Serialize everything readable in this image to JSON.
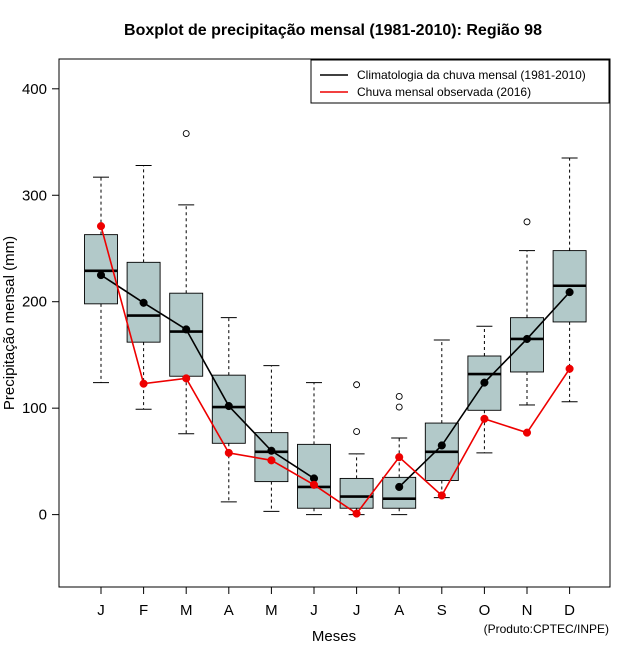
{
  "chart_data": {
    "type": "boxplot",
    "title": "Boxplot de precipitação mensal (1981-2010): Região 98",
    "xlabel": "Meses",
    "ylabel": "Precipitação mensal (mm)",
    "ylim": [
      -68,
      428
    ],
    "yticks": [
      0,
      100,
      200,
      300,
      400
    ],
    "categories": [
      "J",
      "F",
      "M",
      "A",
      "M",
      "J",
      "J",
      "A",
      "S",
      "O",
      "N",
      "D"
    ],
    "boxes": [
      {
        "whisker_low": 124,
        "q1": 198,
        "median": 229,
        "q3": 263,
        "whisker_high": 317,
        "outliers": []
      },
      {
        "whisker_low": 99,
        "q1": 162,
        "median": 187,
        "q3": 237,
        "whisker_high": 328,
        "outliers": []
      },
      {
        "whisker_low": 76,
        "q1": 130,
        "median": 172,
        "q3": 208,
        "whisker_high": 291,
        "outliers": [
          358
        ]
      },
      {
        "whisker_low": 12,
        "q1": 67,
        "median": 101,
        "q3": 131,
        "whisker_high": 185,
        "outliers": []
      },
      {
        "whisker_low": 3,
        "q1": 31,
        "median": 59,
        "q3": 77,
        "whisker_high": 140,
        "outliers": []
      },
      {
        "whisker_low": 0,
        "q1": 6,
        "median": 26,
        "q3": 66,
        "whisker_high": 124,
        "outliers": []
      },
      {
        "whisker_low": 0,
        "q1": 6,
        "median": 17,
        "q3": 34,
        "whisker_high": 57,
        "outliers": [
          78,
          122
        ]
      },
      {
        "whisker_low": 0,
        "q1": 6,
        "median": 15,
        "q3": 35,
        "whisker_high": 72,
        "outliers": [
          101,
          111
        ]
      },
      {
        "whisker_low": 16,
        "q1": 32,
        "median": 59,
        "q3": 86,
        "whisker_high": 164,
        "outliers": []
      },
      {
        "whisker_low": 58,
        "q1": 98,
        "median": 132,
        "q3": 149,
        "whisker_high": 177,
        "outliers": []
      },
      {
        "whisker_low": 103,
        "q1": 134,
        "median": 165,
        "q3": 185,
        "whisker_high": 248,
        "outliers": [
          275
        ]
      },
      {
        "whisker_low": 106,
        "q1": 181,
        "median": 215,
        "q3": 248,
        "whisker_high": 335,
        "outliers": []
      }
    ],
    "series": [
      {
        "name": "Climatologia da chuva mensal (1981-2010)",
        "color": "#000000",
        "values": [
          225,
          199,
          174,
          102,
          60,
          34,
          null,
          26,
          65,
          124,
          165,
          209
        ]
      },
      {
        "name": "Chuva mensal observada (2016)",
        "color": "#ee0000",
        "values": [
          271,
          123,
          128,
          58,
          51,
          28,
          1,
          54,
          18,
          90,
          77,
          137
        ]
      }
    ],
    "legend_position": "top-right",
    "box_color": "#b2c9c9",
    "credit": "(Produto:CPTEC/INPE)"
  }
}
